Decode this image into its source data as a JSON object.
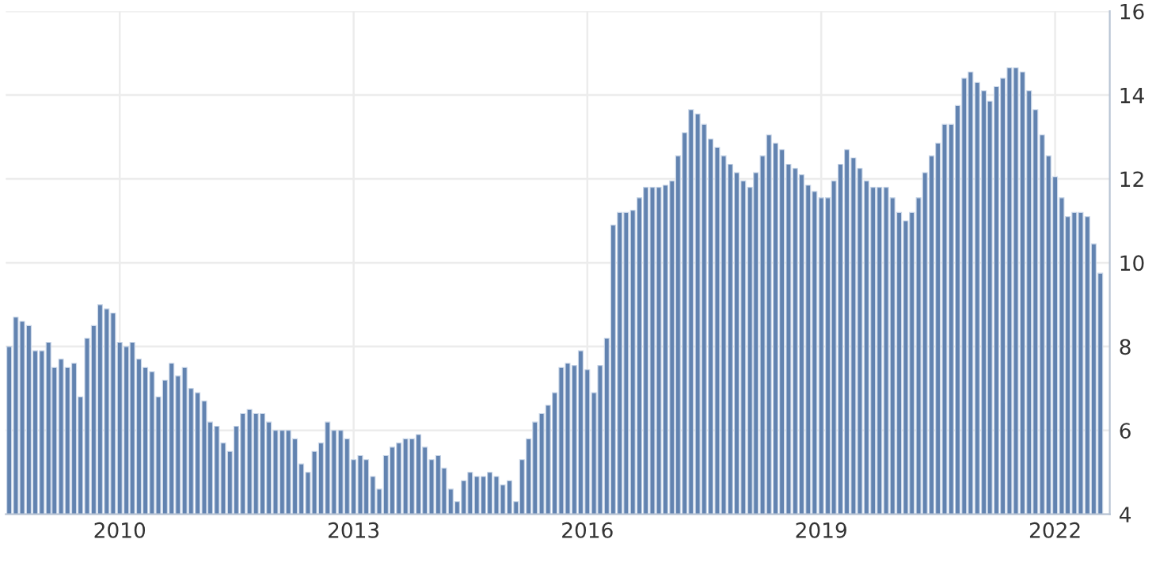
{
  "chart_data": {
    "type": "bar",
    "x": [
      "2008-08",
      "2008-09",
      "2008-10",
      "2008-11",
      "2008-12",
      "2009-01",
      "2009-02",
      "2009-03",
      "2009-04",
      "2009-05",
      "2009-06",
      "2009-07",
      "2009-08",
      "2009-09",
      "2009-10",
      "2009-11",
      "2009-12",
      "2010-01",
      "2010-02",
      "2010-03",
      "2010-04",
      "2010-05",
      "2010-06",
      "2010-07",
      "2010-08",
      "2010-09",
      "2010-10",
      "2010-11",
      "2010-12",
      "2011-01",
      "2011-02",
      "2011-03",
      "2011-04",
      "2011-05",
      "2011-06",
      "2011-07",
      "2011-08",
      "2011-09",
      "2011-10",
      "2011-11",
      "2011-12",
      "2012-01",
      "2012-02",
      "2012-03",
      "2012-04",
      "2012-05",
      "2012-06",
      "2012-07",
      "2012-08",
      "2012-09",
      "2012-10",
      "2012-11",
      "2012-12",
      "2013-01",
      "2013-02",
      "2013-03",
      "2013-04",
      "2013-05",
      "2013-06",
      "2013-07",
      "2013-08",
      "2013-09",
      "2013-10",
      "2013-11",
      "2013-12",
      "2014-01",
      "2014-02",
      "2014-03",
      "2014-04",
      "2014-05",
      "2014-06",
      "2014-07",
      "2014-08",
      "2014-09",
      "2014-10",
      "2014-11",
      "2014-12",
      "2015-01",
      "2015-02",
      "2015-03",
      "2015-04",
      "2015-05",
      "2015-06",
      "2015-07",
      "2015-08",
      "2015-09",
      "2015-10",
      "2015-11",
      "2015-12",
      "2016-01",
      "2016-02",
      "2016-03",
      "2016-04",
      "2016-05",
      "2016-06",
      "2016-07",
      "2016-08",
      "2016-09",
      "2016-10",
      "2016-11",
      "2016-12",
      "2017-01",
      "2017-02",
      "2017-03",
      "2017-04",
      "2017-05",
      "2017-06",
      "2017-07",
      "2017-08",
      "2017-09",
      "2017-10",
      "2017-11",
      "2017-12",
      "2018-01",
      "2018-02",
      "2018-03",
      "2018-04",
      "2018-05",
      "2018-06",
      "2018-07",
      "2018-08",
      "2018-09",
      "2018-10",
      "2018-11",
      "2018-12",
      "2019-01",
      "2019-02",
      "2019-03",
      "2019-04",
      "2019-05",
      "2019-06",
      "2019-07",
      "2019-08",
      "2019-09",
      "2019-10",
      "2019-11",
      "2019-12",
      "2020-01",
      "2020-02",
      "2020-03",
      "2020-04",
      "2020-05",
      "2020-06",
      "2020-07",
      "2020-08",
      "2020-09",
      "2020-10",
      "2020-11",
      "2020-12",
      "2021-01",
      "2021-02",
      "2021-03",
      "2021-04",
      "2021-05",
      "2021-06",
      "2021-07",
      "2021-08",
      "2021-09",
      "2021-10",
      "2021-11",
      "2021-12",
      "2022-01",
      "2022-02",
      "2022-03",
      "2022-04",
      "2022-05",
      "2022-06",
      "2022-07",
      "2022-08"
    ],
    "values": [
      8.0,
      8.7,
      8.6,
      8.5,
      7.9,
      7.9,
      8.1,
      7.5,
      7.7,
      7.5,
      7.6,
      6.8,
      8.2,
      8.5,
      9.0,
      8.9,
      8.8,
      8.1,
      8.0,
      8.1,
      7.7,
      7.5,
      7.4,
      6.8,
      7.2,
      7.6,
      7.3,
      7.5,
      7.0,
      6.9,
      6.7,
      6.2,
      6.1,
      5.7,
      5.5,
      6.1,
      6.4,
      6.5,
      6.4,
      6.4,
      6.2,
      6.0,
      6.0,
      6.0,
      5.8,
      5.2,
      5.0,
      5.5,
      5.7,
      6.2,
      6.0,
      6.0,
      5.8,
      5.3,
      5.4,
      5.3,
      4.9,
      4.6,
      5.4,
      5.6,
      5.7,
      5.8,
      5.8,
      5.9,
      5.6,
      5.3,
      5.4,
      5.1,
      4.6,
      4.3,
      4.8,
      5.0,
      4.9,
      4.9,
      5.0,
      4.9,
      4.7,
      4.8,
      4.3,
      5.3,
      5.8,
      6.2,
      6.4,
      6.6,
      6.9,
      7.5,
      7.6,
      7.55,
      7.9,
      7.45,
      6.9,
      7.55,
      8.2,
      10.9,
      11.2,
      11.2,
      11.25,
      11.55,
      11.8,
      11.8,
      11.8,
      11.85,
      11.95,
      12.55,
      13.1,
      13.65,
      13.55,
      13.3,
      12.95,
      12.75,
      12.55,
      12.35,
      12.15,
      11.95,
      11.8,
      12.15,
      12.55,
      13.05,
      12.85,
      12.7,
      12.35,
      12.25,
      12.1,
      11.85,
      11.7,
      11.55,
      11.55,
      11.95,
      12.35,
      12.7,
      12.5,
      12.25,
      11.95,
      11.8,
      11.8,
      11.8,
      11.55,
      11.2,
      11.0,
      11.2,
      11.55,
      12.15,
      12.55,
      12.85,
      13.3,
      13.3,
      13.75,
      14.4,
      14.55,
      14.3,
      14.1,
      13.85,
      14.2,
      14.4,
      14.65,
      14.65,
      14.55,
      14.1,
      13.65,
      13.05,
      12.55,
      12.05,
      11.55,
      11.1,
      11.2,
      11.2,
      11.1,
      10.45,
      9.75
    ],
    "color": "#6283b0",
    "xlim": [
      "2008-07-16",
      "2022-09-14"
    ],
    "xticks": [
      {
        "value": "2010-01",
        "label": "2010"
      },
      {
        "value": "2013-01",
        "label": "2013"
      },
      {
        "value": "2016-01",
        "label": "2016"
      },
      {
        "value": "2019-01",
        "label": "2019"
      },
      {
        "value": "2022-01",
        "label": "2022"
      }
    ],
    "ylim": [
      4,
      16
    ],
    "yticks": [
      4,
      6,
      8,
      10,
      12,
      14,
      16
    ],
    "grid": true
  }
}
